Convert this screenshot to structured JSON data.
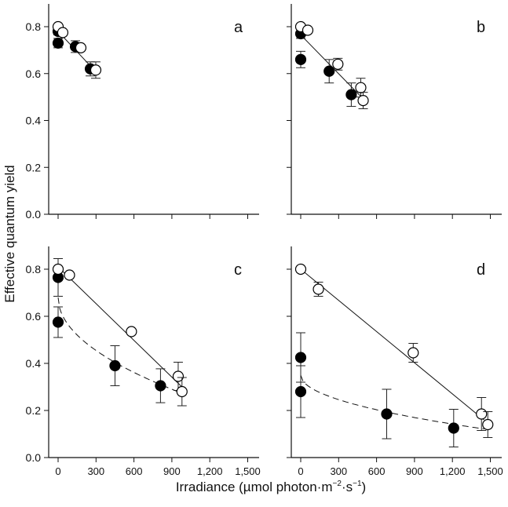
{
  "chart_data": [
    {
      "type": "scatter",
      "panel_label": "a",
      "xlim": [
        0,
        1500
      ],
      "ylim": [
        0,
        0.9
      ],
      "xticks": [
        "0",
        "300",
        "600",
        "900",
        "1,200",
        "1,500"
      ],
      "show_xtick_labels": false,
      "yticks": [
        "0.0",
        "0.2",
        "0.4",
        "0.6",
        "0.8"
      ],
      "show_ytick_labels": true,
      "series": [
        {
          "marker": "filled-circle",
          "points": [
            [
              0,
              0.78,
              0.015
            ],
            [
              0,
              0.73,
              0.02
            ],
            [
              137,
              0.715,
              0.025
            ],
            [
              255,
              0.62,
              0.03
            ]
          ]
        },
        {
          "marker": "open-circle",
          "points": [
            [
              0,
              0.8,
              0.01
            ],
            [
              37,
              0.775,
              0.01
            ],
            [
              180,
              0.71,
              0.01
            ],
            [
              298,
              0.615,
              0.035
            ]
          ]
        }
      ],
      "fits": [
        {
          "style": "solid",
          "form": "linear",
          "from": [
            0,
            0.78
          ],
          "to": [
            260,
            0.63
          ]
        }
      ]
    },
    {
      "type": "scatter",
      "panel_label": "b",
      "xlim": [
        0,
        1500
      ],
      "ylim": [
        0,
        0.9
      ],
      "xticks": [
        "0",
        "300",
        "600",
        "900",
        "1,200",
        "1,500"
      ],
      "show_xtick_labels": false,
      "yticks": [
        "0.0",
        "0.2",
        "0.4",
        "0.6",
        "0.8"
      ],
      "show_ytick_labels": false,
      "series": [
        {
          "marker": "filled-circle",
          "points": [
            [
              0,
              0.77,
              0.02
            ],
            [
              0,
              0.66,
              0.035
            ],
            [
              225,
              0.61,
              0.05
            ],
            [
              400,
              0.51,
              0.05
            ]
          ]
        },
        {
          "marker": "open-circle",
          "points": [
            [
              0,
              0.8,
              0.01
            ],
            [
              56,
              0.785,
              0.01
            ],
            [
              294,
              0.64,
              0.025
            ],
            [
              475,
              0.54,
              0.04
            ],
            [
              494,
              0.485,
              0.035
            ]
          ]
        }
      ],
      "fits": [
        {
          "style": "solid",
          "form": "linear",
          "from": [
            0,
            0.765
          ],
          "to": [
            480,
            0.5
          ]
        }
      ]
    },
    {
      "type": "scatter",
      "panel_label": "c",
      "xlim": [
        0,
        1500
      ],
      "ylim": [
        0,
        0.9
      ],
      "xticks": [
        "0",
        "300",
        "600",
        "900",
        "1,200",
        "1,500"
      ],
      "show_xtick_labels": true,
      "yticks": [
        "0.0",
        "0.2",
        "0.4",
        "0.6",
        "0.8"
      ],
      "show_ytick_labels": true,
      "series": [
        {
          "marker": "filled-circle",
          "points": [
            [
              0,
              0.765,
              0.08
            ],
            [
              0,
              0.575,
              0.065
            ],
            [
              450,
              0.39,
              0.085
            ],
            [
              810,
              0.305,
              0.072
            ]
          ]
        },
        {
          "marker": "open-circle",
          "points": [
            [
              0,
              0.8,
              0.01
            ],
            [
              90,
              0.775,
              0.01
            ],
            [
              580,
              0.535,
              0.01
            ],
            [
              950,
              0.345,
              0.06
            ],
            [
              980,
              0.28,
              0.06
            ]
          ]
        }
      ],
      "fits": [
        {
          "style": "solid",
          "form": "linear",
          "from": [
            0,
            0.81
          ],
          "to": [
            980,
            0.3
          ]
        },
        {
          "style": "dashed",
          "form": "sqrt",
          "a": 0.68,
          "b": 0.013,
          "xmax": 970
        }
      ]
    },
    {
      "type": "scatter",
      "panel_label": "d",
      "xlim": [
        0,
        1500
      ],
      "ylim": [
        0,
        0.9
      ],
      "xticks": [
        "0",
        "300",
        "600",
        "900",
        "1,200",
        "1,500"
      ],
      "show_xtick_labels": true,
      "yticks": [
        "0.0",
        "0.2",
        "0.4",
        "0.6",
        "0.8"
      ],
      "show_ytick_labels": false,
      "series": [
        {
          "marker": "filled-circle",
          "points": [
            [
              0,
              0.425,
              0.105
            ],
            [
              0,
              0.28,
              0.11
            ],
            [
              680,
              0.185,
              0.105
            ],
            [
              1210,
              0.125,
              0.08
            ]
          ]
        },
        {
          "marker": "open-circle",
          "points": [
            [
              0,
              0.8,
              0.01
            ],
            [
              140,
              0.715,
              0.03
            ],
            [
              890,
              0.445,
              0.04
            ],
            [
              1430,
              0.185,
              0.07
            ],
            [
              1480,
              0.14,
              0.055
            ]
          ]
        }
      ],
      "fits": [
        {
          "style": "solid",
          "form": "linear",
          "from": [
            0,
            0.8
          ],
          "to": [
            1450,
            0.16
          ]
        },
        {
          "style": "dashed",
          "form": "sqrt",
          "a": 0.35,
          "b": 0.006,
          "xmax": 1450
        }
      ]
    }
  ],
  "ylabel": "Effective quantum yield",
  "xlabel": "Irradiance (µmol photon·m",
  "xlabel_sup1": "−2",
  "xlabel_mid": "·s",
  "xlabel_sup2": "−1",
  "xlabel_end": ")"
}
